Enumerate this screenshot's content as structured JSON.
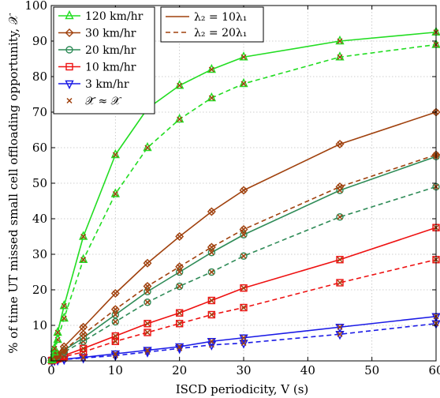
{
  "chart_data": {
    "type": "line",
    "xlabel": "ISCD periodicity, V (s)",
    "ylabel": "% of time UT missed small cell offloading opportunity, 𝒳",
    "xlim": [
      0,
      60
    ],
    "ylim": [
      0,
      100
    ],
    "xticks": [
      0,
      10,
      20,
      30,
      40,
      50,
      60
    ],
    "yticks": [
      0,
      10,
      20,
      30,
      40,
      50,
      60,
      70,
      80,
      90,
      100
    ],
    "grid": true,
    "legend_left": {
      "placement": "top-left",
      "entries": [
        {
          "label": "120 km/hr",
          "color": "#22dd22",
          "marker": "triangle-up"
        },
        {
          "label": "30 km/hr",
          "color": "#a0410d",
          "marker": "diamond"
        },
        {
          "label": "20 km/hr",
          "color": "#2e8b57",
          "marker": "circle"
        },
        {
          "label": "10 km/hr",
          "color": "#ee1111",
          "marker": "square"
        },
        {
          "label": "3 km/hr",
          "color": "#1a1ae6",
          "marker": "triangle-down"
        },
        {
          "label": "𝒳̃ ≈ 𝒳",
          "color": "#a0410d",
          "marker": "x"
        }
      ]
    },
    "legend_right": {
      "placement": "top-center",
      "entries": [
        {
          "label": "λ₂ = 10λ₁",
          "style": "solid",
          "color": "#a0410d"
        },
        {
          "label": "λ₂ = 20λ₁",
          "style": "dashed",
          "color": "#a0410d"
        }
      ]
    },
    "series": [
      {
        "speed": "120 km/hr",
        "density": "λ2 = 10λ1",
        "style": "solid",
        "color": "#22dd22",
        "marker": "triangle-up",
        "x": [
          0.1,
          0.5,
          1,
          2,
          5,
          10,
          15,
          20,
          25,
          30,
          45,
          60
        ],
        "y": [
          0.5,
          3.5,
          8,
          15.5,
          35,
          58,
          71,
          77.5,
          82,
          85.5,
          90,
          92.5
        ]
      },
      {
        "speed": "120 km/hr",
        "density": "λ2 = 20λ1",
        "style": "dashed",
        "color": "#22dd22",
        "marker": "triangle-up",
        "x": [
          0.1,
          0.5,
          1,
          2,
          5,
          10,
          15,
          20,
          25,
          30,
          45,
          60
        ],
        "y": [
          0.3,
          2.5,
          6,
          12,
          28.5,
          47,
          60,
          68,
          74,
          78,
          85.5,
          89
        ]
      },
      {
        "speed": "30 km/hr",
        "density": "λ2 = 10λ1",
        "style": "solid",
        "color": "#a0410d",
        "marker": "diamond",
        "x": [
          0.1,
          0.5,
          1,
          2,
          5,
          10,
          15,
          20,
          25,
          30,
          45,
          60
        ],
        "y": [
          0.1,
          1,
          2,
          4,
          9.5,
          19,
          27.5,
          35,
          42,
          48,
          61,
          70
        ]
      },
      {
        "speed": "30 km/hr",
        "density": "λ2 = 20λ1",
        "style": "dashed",
        "color": "#a0410d",
        "marker": "diamond",
        "x": [
          0.1,
          0.5,
          1,
          2,
          5,
          10,
          15,
          20,
          25,
          30,
          45,
          60
        ],
        "y": [
          0.1,
          0.8,
          1.5,
          3,
          7.5,
          14.5,
          21,
          26.5,
          32,
          37,
          49,
          58
        ]
      },
      {
        "speed": "20 km/hr",
        "density": "λ2 = 10λ1",
        "style": "solid",
        "color": "#2e8b57",
        "marker": "circle",
        "x": [
          0.1,
          0.5,
          1,
          2,
          5,
          10,
          15,
          20,
          25,
          30,
          45,
          60
        ],
        "y": [
          0.1,
          0.8,
          1.5,
          3,
          6.5,
          13,
          19.5,
          25,
          30.5,
          35.5,
          48,
          57.5
        ]
      },
      {
        "speed": "20 km/hr",
        "density": "λ2 = 20λ1",
        "style": "dashed",
        "color": "#2e8b57",
        "marker": "circle",
        "x": [
          0.1,
          0.5,
          1,
          2,
          5,
          10,
          15,
          20,
          25,
          30,
          45,
          60
        ],
        "y": [
          0.1,
          0.6,
          1.2,
          2.5,
          5.5,
          11,
          16.5,
          21,
          25,
          29.5,
          40.5,
          49
        ]
      },
      {
        "speed": "10 km/hr",
        "density": "λ2 = 10λ1",
        "style": "solid",
        "color": "#ee1111",
        "marker": "square",
        "x": [
          0.1,
          0.5,
          1,
          2,
          5,
          10,
          15,
          20,
          25,
          30,
          45,
          60
        ],
        "y": [
          0.1,
          0.4,
          0.8,
          1.5,
          3.5,
          7,
          10.5,
          13.5,
          17,
          20.5,
          28.5,
          37.5
        ]
      },
      {
        "speed": "10 km/hr",
        "density": "λ2 = 20λ1",
        "style": "dashed",
        "color": "#ee1111",
        "marker": "square",
        "x": [
          0.1,
          0.5,
          1,
          2,
          5,
          10,
          15,
          20,
          25,
          30,
          45,
          60
        ],
        "y": [
          0.1,
          0.3,
          0.6,
          1.2,
          2.5,
          5.5,
          8,
          10.5,
          13,
          15,
          22,
          28.5
        ]
      },
      {
        "speed": "3 km/hr",
        "density": "λ2 = 10λ1",
        "style": "solid",
        "color": "#1a1ae6",
        "marker": "triangle-down",
        "x": [
          0.1,
          0.5,
          1,
          2,
          5,
          10,
          15,
          20,
          25,
          30,
          45,
          60
        ],
        "y": [
          0,
          0.2,
          0.3,
          0.5,
          1,
          2,
          3,
          4,
          5.5,
          6.5,
          9.5,
          12.5
        ]
      },
      {
        "speed": "3 km/hr",
        "density": "λ2 = 20λ1",
        "style": "dashed",
        "color": "#1a1ae6",
        "marker": "triangle-down",
        "x": [
          0.1,
          0.5,
          1,
          2,
          5,
          10,
          15,
          20,
          25,
          30,
          45,
          60
        ],
        "y": [
          0,
          0.1,
          0.2,
          0.4,
          0.8,
          1.5,
          2.5,
          3.5,
          4.5,
          5,
          7.5,
          10.5
        ]
      }
    ]
  }
}
